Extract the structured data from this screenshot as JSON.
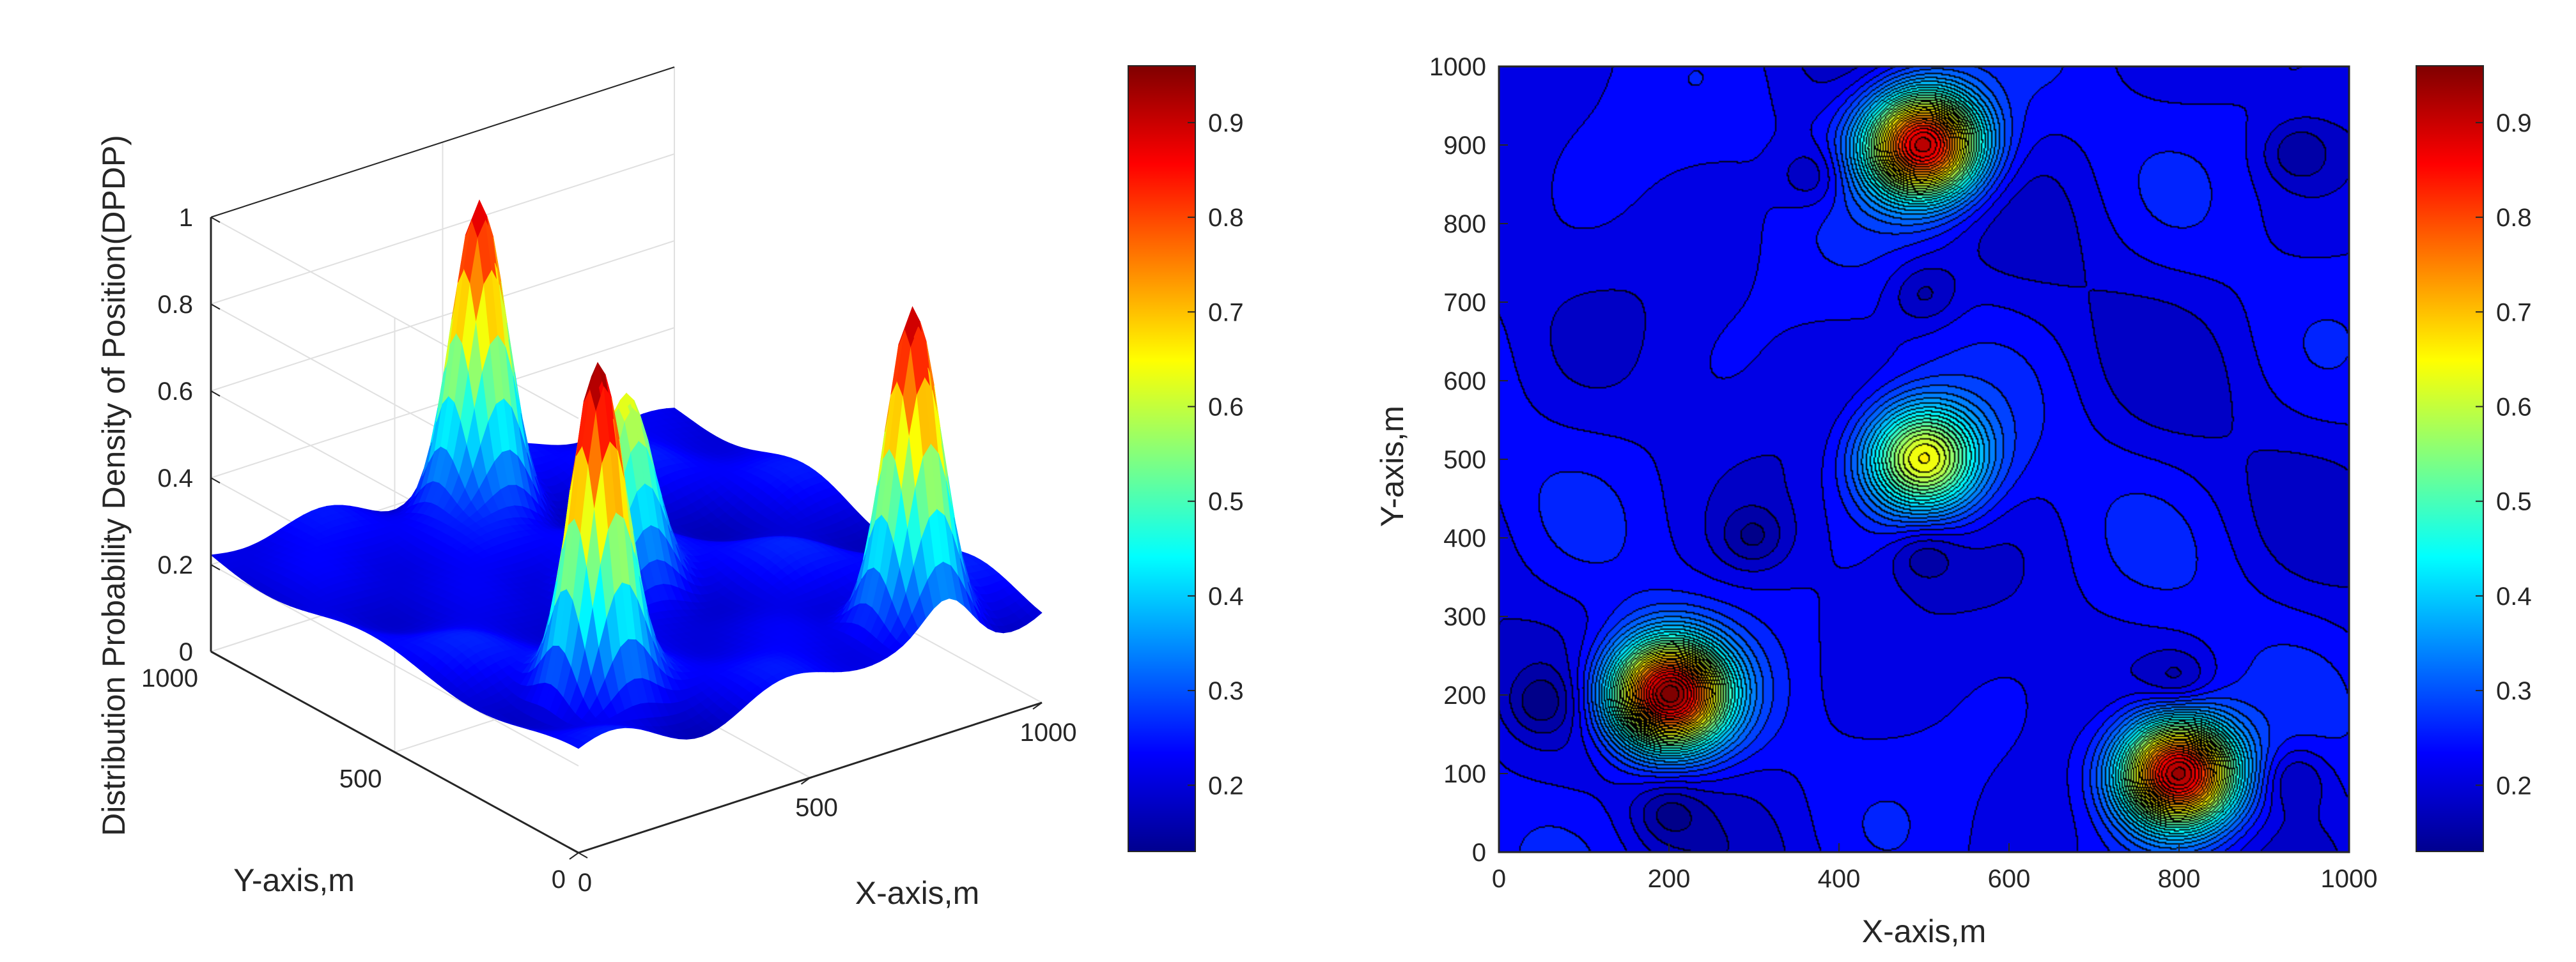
{
  "chart_data": [
    {
      "type": "surface",
      "zlabel": "Distribution Probability Density of Position(DPDP)",
      "xlabel": "X-axis,m",
      "ylabel": "Y-axis,m",
      "xlim": [
        0,
        1000
      ],
      "ylim": [
        0,
        1000
      ],
      "zlim": [
        0,
        1
      ],
      "x_ticks": [
        "0",
        "500",
        "1000"
      ],
      "y_ticks": [
        "0",
        "500",
        "1000"
      ],
      "z_ticks": [
        "0",
        "0.2",
        "0.4",
        "0.6",
        "0.8",
        "1"
      ],
      "background_level": 0.22,
      "peaks": [
        {
          "x": 200,
          "y": 200,
          "z": 0.96
        },
        {
          "x": 500,
          "y": 500,
          "z": 0.65
        },
        {
          "x": 500,
          "y": 900,
          "z": 0.93
        },
        {
          "x": 800,
          "y": 100,
          "z": 0.95
        }
      ],
      "colorbar": {
        "colormap": "jet",
        "range": [
          0.13,
          0.96
        ],
        "ticks": [
          "0.2",
          "0.3",
          "0.4",
          "0.5",
          "0.6",
          "0.7",
          "0.8",
          "0.9"
        ]
      },
      "grid": true
    },
    {
      "type": "contour",
      "xlabel": "X-axis,m",
      "ylabel": "Y-axis,m",
      "xlim": [
        0,
        1000
      ],
      "ylim": [
        0,
        1000
      ],
      "x_ticks": [
        "0",
        "200",
        "400",
        "600",
        "800",
        "1000"
      ],
      "y_ticks": [
        "0",
        "100",
        "200",
        "300",
        "400",
        "500",
        "600",
        "700",
        "800",
        "900",
        "1000"
      ],
      "background_level": 0.22,
      "peaks": [
        {
          "x": 200,
          "y": 200,
          "z": 0.96
        },
        {
          "x": 500,
          "y": 500,
          "z": 0.65
        },
        {
          "x": 500,
          "y": 900,
          "z": 0.93
        },
        {
          "x": 800,
          "y": 100,
          "z": 0.95
        }
      ],
      "minima": [
        {
          "x": 50,
          "y": 190
        },
        {
          "x": 200,
          "y": 50
        },
        {
          "x": 500,
          "y": 380
        },
        {
          "x": 935,
          "y": 95
        },
        {
          "x": 800,
          "y": 215
        },
        {
          "x": 370,
          "y": 860
        },
        {
          "x": 500,
          "y": 710
        },
        {
          "x": 300,
          "y": 400
        },
        {
          "x": 940,
          "y": 890
        }
      ],
      "colorbar": {
        "colormap": "jet",
        "range": [
          0.13,
          0.96
        ],
        "ticks": [
          "0.2",
          "0.3",
          "0.4",
          "0.5",
          "0.6",
          "0.7",
          "0.8",
          "0.9"
        ]
      }
    }
  ]
}
